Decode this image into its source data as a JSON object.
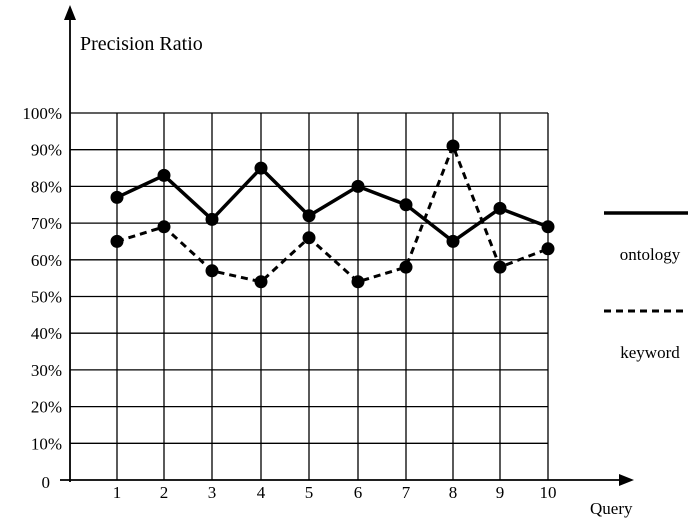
{
  "chart_data": {
    "type": "line",
    "ylabel": "Precision Ratio",
    "xlabel": "Query",
    "origin_label": "0",
    "x": [
      1,
      2,
      3,
      4,
      5,
      6,
      7,
      8,
      9,
      10
    ],
    "x_tick_labels": [
      "1",
      "2",
      "3",
      "4",
      "5",
      "6",
      "7",
      "8",
      "9",
      "10"
    ],
    "y_tick_labels": [
      "10%",
      "20%",
      "30%",
      "40%",
      "50%",
      "60%",
      "70%",
      "80%",
      "90%",
      "100%"
    ],
    "ylim": [
      0,
      100
    ],
    "grid": true,
    "legend_position": "right",
    "series": [
      {
        "name": "ontology",
        "line_style": "solid",
        "values": [
          77,
          83,
          71,
          85,
          72,
          80,
          75,
          65,
          74,
          69
        ]
      },
      {
        "name": "keyword",
        "line_style": "dashed",
        "values": [
          65,
          69,
          57,
          54,
          66,
          54,
          58,
          91,
          58,
          63
        ]
      }
    ],
    "colors": {
      "line": "#000000",
      "grid": "#000000",
      "background": "#ffffff"
    }
  }
}
